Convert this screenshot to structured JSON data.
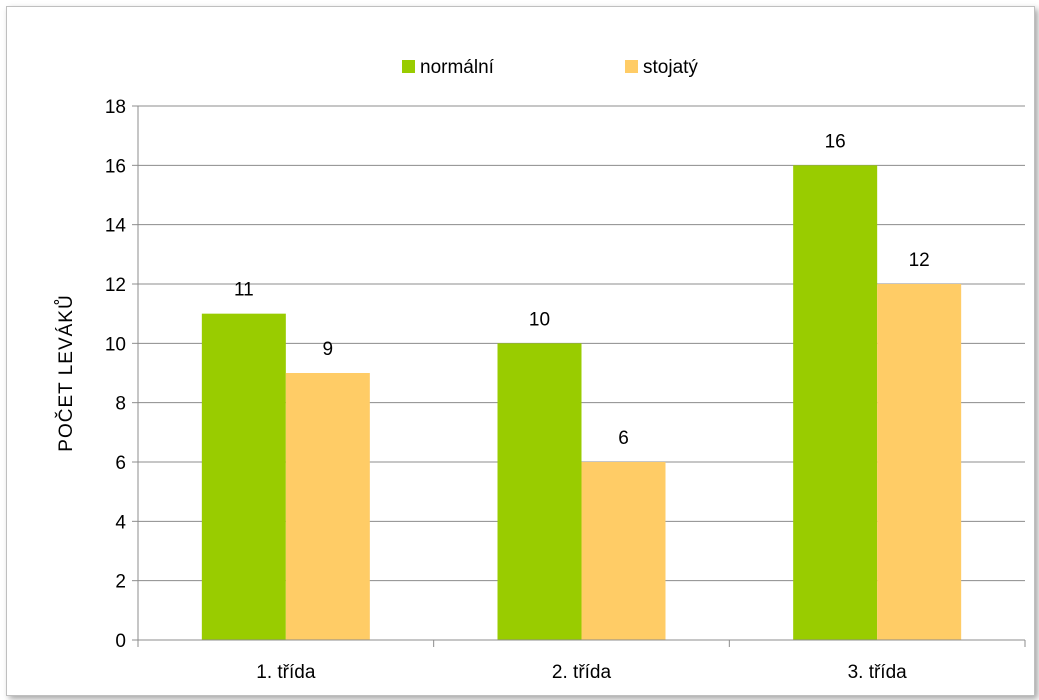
{
  "chart_data": {
    "type": "bar",
    "title": "",
    "xlabel": "",
    "ylabel": "POČET  LEVÁKŮ",
    "ylim": [
      0,
      18
    ],
    "yticks": [
      0,
      2,
      4,
      6,
      8,
      10,
      12,
      14,
      16,
      18
    ],
    "categories": [
      "1. třída",
      "2. třída",
      "3. třída"
    ],
    "series": [
      {
        "name": "normální",
        "values": [
          11,
          10,
          16
        ],
        "color": "#99cc00"
      },
      {
        "name": "stojatý",
        "values": [
          9,
          6,
          12
        ],
        "color": "#ffcc66"
      }
    ],
    "grid": "horizontal",
    "legend_position": "top-center",
    "data_labels": true
  }
}
